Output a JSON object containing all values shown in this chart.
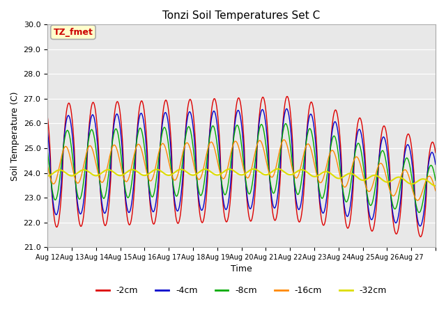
{
  "title": "Tonzi Soil Temperatures Set C",
  "xlabel": "Time",
  "ylabel": "Soil Temperature (C)",
  "annotation": "TZ_fmet",
  "annotation_color": "#cc0000",
  "annotation_bg": "#ffffcc",
  "annotation_border": "#aaaaaa",
  "ylim": [
    21.0,
    30.0
  ],
  "yticks": [
    21.0,
    22.0,
    23.0,
    24.0,
    25.0,
    26.0,
    27.0,
    28.0,
    29.0,
    30.0
  ],
  "xtick_labels": [
    "Aug 12",
    "Aug 13",
    "Aug 14",
    "Aug 15",
    "Aug 16",
    "Aug 17",
    "Aug 18",
    "Aug 19",
    "Aug 20",
    "Aug 21",
    "Aug 22",
    "Aug 23",
    "Aug 24",
    "Aug 25",
    "Aug 26",
    "Aug 27"
  ],
  "fig_bg": "#ffffff",
  "plot_bg": "#e8e8e8",
  "grid_color": "#ffffff",
  "line_colors": {
    "-2cm": "#dd0000",
    "-4cm": "#0000cc",
    "-8cm": "#00aa00",
    "-16cm": "#ff8800",
    "-32cm": "#dddd00"
  },
  "legend_labels": [
    "-2cm",
    "-4cm",
    "-8cm",
    "-16cm",
    "-32cm"
  ]
}
